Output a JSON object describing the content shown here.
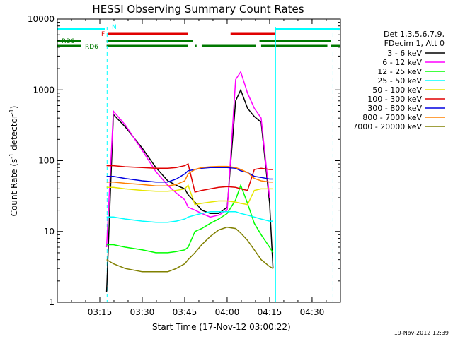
{
  "chart_data": {
    "type": "line",
    "title": "HESSI Observing Summary Count Rates",
    "xlabel": "Start Time (17-Nov-12 03:00:22)",
    "ylabel_main": "Count Rate (s",
    "ylabel_sup1": "-1",
    "ylabel_mid": " detector",
    "ylabel_sup2": "-1",
    "ylabel_end": ")",
    "yscale": "log",
    "xlim": [
      3.0,
      4.667
    ],
    "ylim": [
      1,
      10000
    ],
    "x_ticks": [
      "03:15",
      "03:30",
      "03:45",
      "04:00",
      "04:15",
      "04:30"
    ],
    "x_tick_values": [
      3.25,
      3.5,
      3.75,
      4.0,
      4.25,
      4.5
    ],
    "y_ticks": [
      "1",
      "10",
      "100",
      "1000",
      "10000"
    ],
    "y_tick_values": [
      1,
      10,
      100,
      1000,
      10000
    ],
    "legend_header": [
      "Det 1,3,5,6,7,9,",
      "FDecim 1, Att 0"
    ],
    "legend_position": "right",
    "footer_timestamp": "19-Nov-2012 12:39",
    "flag_labels": {
      "N": "N",
      "F": "F",
      "RD0": "RD0",
      "RD6": "RD6"
    },
    "flag_bars": {
      "N": {
        "color": "#00ffff",
        "segments": [
          [
            3.0,
            3.28
          ],
          [
            4.28,
            4.667
          ]
        ]
      },
      "F": {
        "color": "#e00000",
        "segments": [
          [
            3.3,
            3.77
          ],
          [
            4.02,
            4.28
          ]
        ]
      },
      "RD0": {
        "color": "#007800",
        "segments": [
          [
            3.0,
            3.14
          ],
          [
            3.29,
            3.8
          ],
          [
            4.19,
            4.61
          ]
        ]
      },
      "RD6": {
        "color": "#007800",
        "segments": [
          [
            3.0,
            3.14
          ],
          [
            3.29,
            3.77
          ],
          [
            3.81,
            3.82
          ],
          [
            3.85,
            4.17
          ],
          [
            4.2,
            4.59
          ],
          [
            4.61,
            4.667
          ]
        ]
      }
    },
    "vertical_markers": [
      {
        "x": 3.0,
        "style": "solid",
        "color": "#00ffff"
      },
      {
        "x": 3.293,
        "style": "dashed",
        "color": "#00ffff"
      },
      {
        "x": 4.285,
        "style": "solid",
        "color": "#00ffff"
      },
      {
        "x": 4.623,
        "style": "dashed",
        "color": "#00ffff"
      }
    ],
    "x": [
      3.22,
      3.26,
      3.29,
      3.33,
      3.4,
      3.5,
      3.58,
      3.65,
      3.7,
      3.75,
      3.77,
      3.81,
      3.85,
      3.9,
      3.95,
      4.0,
      4.05,
      4.08,
      4.12,
      4.16,
      4.2,
      4.25,
      4.27,
      4.3
    ],
    "series": [
      {
        "name": "3 - 6 keV",
        "color": "#000000",
        "values": [
          null,
          null,
          1.4,
          450,
          300,
          150,
          80,
          52,
          45,
          40,
          33,
          26,
          20,
          18,
          18,
          22,
          700,
          1000,
          550,
          420,
          350,
          25,
          3,
          null
        ]
      },
      {
        "name": "6 - 12 keV",
        "color": "#ff00ff",
        "values": [
          null,
          null,
          6,
          500,
          320,
          140,
          70,
          45,
          35,
          28,
          22,
          20,
          18,
          16,
          17,
          20,
          1400,
          1800,
          900,
          550,
          400,
          30,
          null,
          null
        ]
      },
      {
        "name": "12 - 25 keV",
        "color": "#00ff00",
        "values": [
          null,
          null,
          6.5,
          6.5,
          6,
          5.5,
          5,
          5,
          5.2,
          5.5,
          6,
          10,
          11,
          13,
          15,
          18,
          28,
          45,
          25,
          13,
          9,
          6,
          5,
          null
        ]
      },
      {
        "name": "25 - 50 keV",
        "color": "#00ffff",
        "values": [
          null,
          null,
          16,
          16,
          15,
          14,
          13.5,
          13.5,
          14,
          15,
          16,
          17,
          18,
          19,
          19,
          19,
          19,
          18,
          17,
          16,
          15,
          14,
          14,
          null
        ]
      },
      {
        "name": "50 - 100 keV",
        "color": "#e6e600",
        "values": [
          null,
          null,
          42,
          42,
          40,
          38,
          37,
          37,
          38,
          40,
          45,
          24,
          25,
          26,
          27,
          27,
          26,
          25,
          24,
          38,
          40,
          40,
          40,
          null
        ]
      },
      {
        "name": "100 - 300 keV",
        "color": "#e00000",
        "values": [
          null,
          null,
          85,
          85,
          82,
          80,
          78,
          78,
          80,
          85,
          90,
          36,
          38,
          40,
          42,
          43,
          42,
          40,
          38,
          75,
          78,
          75,
          75,
          null
        ]
      },
      {
        "name": "300 - 800 keV",
        "color": "#0000e0",
        "values": [
          null,
          null,
          60,
          60,
          56,
          52,
          50,
          50,
          55,
          65,
          72,
          75,
          78,
          80,
          80,
          80,
          78,
          72,
          68,
          60,
          58,
          55,
          55,
          null
        ]
      },
      {
        "name": "800 - 7000 keV",
        "color": "#ff8000",
        "values": [
          null,
          null,
          50,
          50,
          48,
          46,
          44,
          44,
          46,
          52,
          65,
          75,
          80,
          82,
          83,
          83,
          80,
          75,
          68,
          56,
          52,
          50,
          50,
          null
        ]
      },
      {
        "name": "7000 - 20000 keV",
        "color": "#808000",
        "values": [
          null,
          null,
          4,
          3.5,
          3,
          2.7,
          2.7,
          2.7,
          3,
          3.5,
          4,
          5,
          6.5,
          8.5,
          10.5,
          11.5,
          11,
          9.5,
          7.5,
          5.5,
          4,
          3.2,
          3,
          null
        ]
      }
    ]
  }
}
